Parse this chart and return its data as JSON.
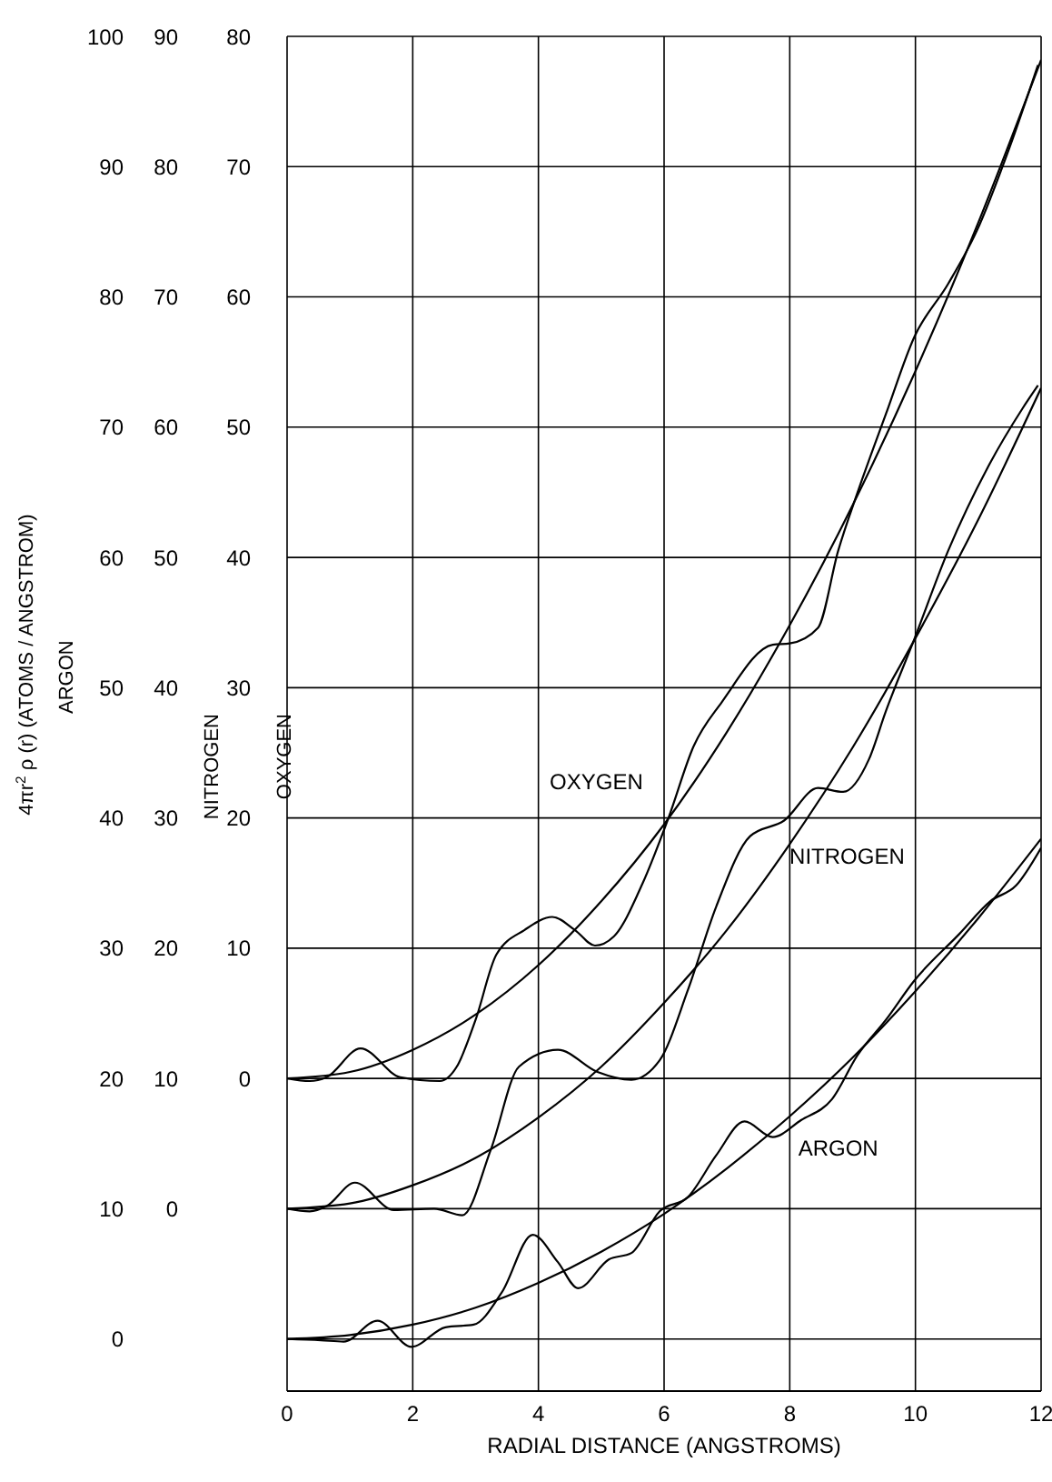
{
  "chart_data": {
    "type": "line",
    "xlabel": "RADIAL DISTANCE (ANGSTROMS)",
    "ylabel": "ARGON",
    "y2label": "NITROGEN",
    "y3label": "OXYGEN",
    "annotations": [
      "4πr$^{2}$ ρ (r)   (ATOMS / ANGSTROM)"
    ],
    "xlim": [
      0,
      12
    ],
    "xticks": [
      0,
      2,
      4,
      6,
      8,
      10,
      12
    ],
    "ylim": [
      -4,
      100
    ],
    "yticks": [
      0,
      10,
      20,
      30,
      40,
      50,
      60,
      70,
      80,
      90,
      100
    ],
    "y2lim": [
      -14,
      90
    ],
    "y2ticks": [
      0,
      10,
      20,
      30,
      40,
      50,
      60,
      70,
      80,
      90
    ],
    "y3lim": [
      -24,
      80
    ],
    "y3ticks": [
      0,
      10,
      20,
      30,
      40,
      50,
      60,
      70,
      80
    ],
    "grid": true,
    "legend": false,
    "marker": "none",
    "line_style": "solid",
    "series": [
      {
        "name": "OXYGEN",
        "color": "#000000",
        "axis": "y3",
        "x": [
          0,
          0.36,
          0.63,
          1.17,
          1.8,
          2.43,
          2.7,
          3.0,
          3.33,
          3.78,
          4.22,
          4.58,
          4.9,
          5.2,
          5.66,
          6.07,
          6.47,
          6.92,
          7.73,
          8.0,
          8.45,
          8.77,
          9.08,
          9.53,
          9.98,
          10.52,
          10.97,
          11.5,
          11.95
        ],
        "values": [
          0,
          -0.2,
          0.1,
          2.3,
          0.1,
          -0.2,
          0.9,
          4.5,
          9.5,
          11.4,
          12.4,
          11.4,
          10.2,
          10.9,
          15,
          20,
          25.5,
          28.9,
          33.3,
          33.4,
          34.6,
          40.5,
          45,
          51,
          56.9,
          61,
          65,
          71.5,
          77.8
        ]
      },
      {
        "color": "#000000",
        "axis": "y3",
        "x": [
          0,
          1,
          2,
          3,
          4,
          5,
          6,
          7,
          8,
          9,
          10,
          11,
          12
        ],
        "values": [
          0,
          0.5,
          2.2,
          4.9,
          8.7,
          13.6,
          19.5,
          26.6,
          34.8,
          44,
          54.3,
          65.7,
          78.2
        ]
      },
      {
        "name": "NITROGEN",
        "color": "#000000",
        "axis": "y2",
        "x": [
          0,
          0.36,
          0.63,
          1.08,
          1.7,
          2.34,
          2.79,
          3.24,
          3.69,
          4.31,
          4.94,
          5.48,
          5.93,
          6.38,
          6.83,
          7.37,
          7.91,
          8.45,
          8.85,
          9.26,
          9.53,
          9.98,
          10.52,
          11.15,
          11.7,
          11.95
        ],
        "values": [
          0,
          -0.2,
          0.2,
          2.0,
          -0.1,
          0,
          -0.5,
          4.5,
          10.9,
          12.2,
          10.5,
          9.9,
          11.4,
          16.8,
          23.2,
          28.6,
          29.8,
          32.3,
          32,
          34.5,
          38.2,
          43.7,
          50.5,
          56.9,
          61.4,
          63.2
        ]
      },
      {
        "color": "#000000",
        "axis": "y2",
        "x": [
          0,
          1,
          2,
          3,
          4,
          5,
          6,
          7,
          8,
          9,
          10,
          11,
          12
        ],
        "values": [
          0,
          0.4,
          1.8,
          3.9,
          7,
          10.9,
          15.8,
          21.4,
          28,
          35.4,
          43.8,
          52.9,
          63
        ]
      },
      {
        "name": "ARGON",
        "color": "#000000",
        "x": [
          0,
          0.54,
          0.9,
          1.44,
          1.98,
          2.52,
          2.97,
          3.42,
          3.91,
          4.31,
          4.63,
          5.12,
          5.48,
          5.93,
          6.38,
          6.83,
          7.28,
          7.73,
          8.18,
          8.67,
          9.08,
          9.53,
          9.98,
          10.7,
          11.19,
          11.6,
          12
        ],
        "values": [
          0,
          -0.1,
          -0.2,
          1.4,
          -0.6,
          0.9,
          1.1,
          3.6,
          8.0,
          5.9,
          3.9,
          6.1,
          6.6,
          9.8,
          10.9,
          14.1,
          16.7,
          15.5,
          16.8,
          18.4,
          21.8,
          24.5,
          27.5,
          31.1,
          33.6,
          34.8,
          37.7
        ]
      },
      {
        "color": "#000000",
        "x": [
          0,
          1,
          2,
          3,
          4,
          5,
          6,
          7,
          8,
          9,
          10,
          11,
          12
        ],
        "values": [
          0,
          0.3,
          1.1,
          2.4,
          4.3,
          6.7,
          9.6,
          13.1,
          17.1,
          21.6,
          26.7,
          32.3,
          38.4
        ]
      }
    ]
  }
}
